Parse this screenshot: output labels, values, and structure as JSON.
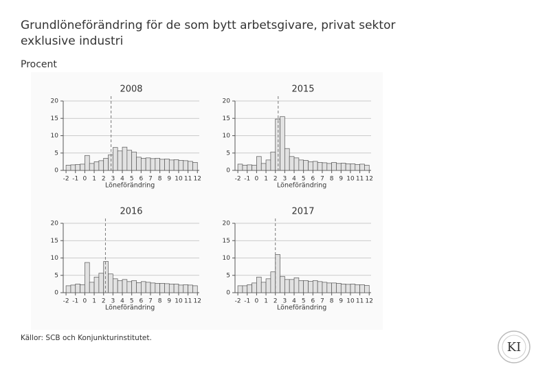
{
  "title": "Grundlöneförändring för de som bytt arbetsgivare, privat sektor exklusive industri",
  "subtitle": "Procent",
  "source": "Källor: SCB och Konjunkturinstitutet.",
  "logo": "KI",
  "chart_data": [
    {
      "type": "histogram",
      "title": "2008",
      "x_label": "Löneförändring",
      "color": "#e2e2e2",
      "grid": true,
      "bins": [
        -2,
        -1.5,
        -1,
        -0.5,
        0,
        0.5,
        1,
        1.5,
        2,
        2.5,
        3,
        3.5,
        4,
        4.5,
        5,
        5.5,
        6,
        6.5,
        7,
        7.5,
        8,
        8.5,
        9,
        9.5,
        10,
        10.5,
        11,
        11.5,
        12
      ],
      "values": [
        1.5,
        1.6,
        1.7,
        1.8,
        4.3,
        2.0,
        2.5,
        2.8,
        3.5,
        4.5,
        6.6,
        5.6,
        6.7,
        5.8,
        5.3,
        3.8,
        3.5,
        3.6,
        3.4,
        3.5,
        3.2,
        3.3,
        3.0,
        3.1,
        2.9,
        2.8,
        2.6,
        2.3
      ],
      "reference_line": 2.8,
      "xlim": [
        -2.3,
        12.2
      ],
      "xticks": [
        -2,
        -1,
        0,
        1,
        2,
        3,
        4,
        5,
        6,
        7,
        8,
        9,
        10,
        11,
        12
      ],
      "ylim": [
        0,
        20
      ],
      "yticks": [
        0,
        5,
        10,
        15,
        20
      ]
    },
    {
      "type": "histogram",
      "title": "2015",
      "x_label": "Löneförändring",
      "color": "#e2e2e2",
      "grid": true,
      "bins": [
        -2,
        -1.5,
        -1,
        -0.5,
        0,
        0.5,
        1,
        1.5,
        2,
        2.5,
        3,
        3.5,
        4,
        4.5,
        5,
        5.5,
        6,
        6.5,
        7,
        7.5,
        8,
        8.5,
        9,
        9.5,
        10,
        10.5,
        11,
        11.5,
        12
      ],
      "values": [
        1.8,
        1.5,
        1.6,
        1.5,
        4.0,
        2.0,
        3.0,
        5.3,
        14.8,
        15.5,
        6.3,
        4.0,
        3.6,
        3.0,
        2.9,
        2.5,
        2.6,
        2.3,
        2.2,
        2.0,
        2.3,
        2.0,
        2.1,
        1.9,
        1.9,
        1.7,
        1.8,
        1.5
      ],
      "reference_line": 2.3,
      "xlim": [
        -2.3,
        12.2
      ],
      "xticks": [
        -2,
        -1,
        0,
        1,
        2,
        3,
        4,
        5,
        6,
        7,
        8,
        9,
        10,
        11,
        12
      ],
      "ylim": [
        0,
        20
      ],
      "yticks": [
        0,
        5,
        10,
        15,
        20
      ]
    },
    {
      "type": "histogram",
      "title": "2016",
      "x_label": "Löneförändring",
      "color": "#e2e2e2",
      "grid": true,
      "bins": [
        -2,
        -1.5,
        -1,
        -0.5,
        0,
        0.5,
        1,
        1.5,
        2,
        2.5,
        3,
        3.5,
        4,
        4.5,
        5,
        5.5,
        6,
        6.5,
        7,
        7.5,
        8,
        8.5,
        9,
        9.5,
        10,
        10.5,
        11,
        11.5,
        12
      ],
      "values": [
        2.0,
        2.2,
        2.5,
        2.3,
        8.7,
        3.0,
        4.5,
        5.6,
        9.0,
        5.4,
        4.0,
        3.5,
        3.8,
        3.2,
        3.5,
        2.9,
        3.2,
        3.0,
        2.8,
        2.7,
        2.7,
        2.6,
        2.5,
        2.5,
        2.2,
        2.3,
        2.2,
        2.0
      ],
      "reference_line": 2.2,
      "xlim": [
        -2.3,
        12.2
      ],
      "xticks": [
        -2,
        -1,
        0,
        1,
        2,
        3,
        4,
        5,
        6,
        7,
        8,
        9,
        10,
        11,
        12
      ],
      "ylim": [
        0,
        20
      ],
      "yticks": [
        0,
        5,
        10,
        15,
        20
      ]
    },
    {
      "type": "histogram",
      "title": "2017",
      "x_label": "Löneförändring",
      "color": "#e2e2e2",
      "grid": true,
      "bins": [
        -2,
        -1.5,
        -1,
        -0.5,
        0,
        0.5,
        1,
        1.5,
        2,
        2.5,
        3,
        3.5,
        4,
        4.5,
        5,
        5.5,
        6,
        6.5,
        7,
        7.5,
        8,
        8.5,
        9,
        9.5,
        10,
        10.5,
        11,
        11.5,
        12
      ],
      "values": [
        2.0,
        2.0,
        2.3,
        2.8,
        4.5,
        3.0,
        4.0,
        6.0,
        11.0,
        4.7,
        3.8,
        3.8,
        4.3,
        3.5,
        3.5,
        3.3,
        3.5,
        3.2,
        3.0,
        2.8,
        2.8,
        2.7,
        2.5,
        2.4,
        2.5,
        2.3,
        2.3,
        2.1
      ],
      "reference_line": 2.0,
      "xlim": [
        -2.3,
        12.2
      ],
      "xticks": [
        -2,
        -1,
        0,
        1,
        2,
        3,
        4,
        5,
        6,
        7,
        8,
        9,
        10,
        11,
        12
      ],
      "ylim": [
        0,
        20
      ],
      "yticks": [
        0,
        5,
        10,
        15,
        20
      ]
    }
  ]
}
